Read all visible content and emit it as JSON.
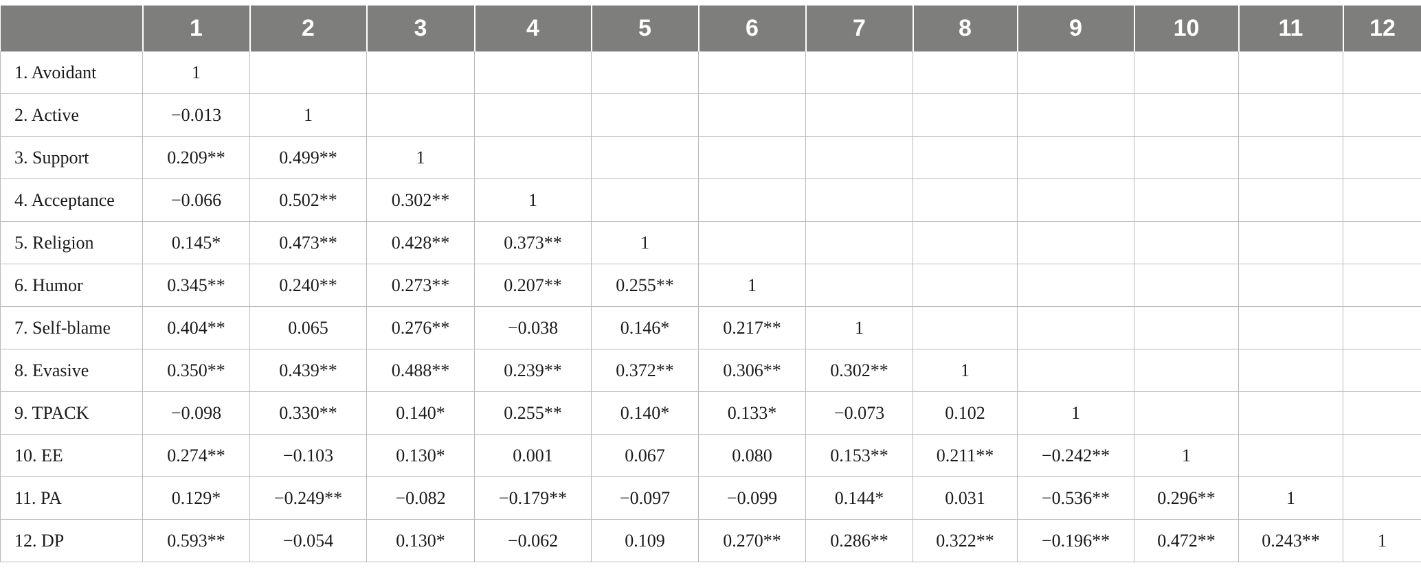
{
  "table": {
    "columns": [
      "",
      "1",
      "2",
      "3",
      "4",
      "5",
      "6",
      "7",
      "8",
      "9",
      "10",
      "11",
      "12"
    ],
    "rows": [
      [
        "1. Avoidant",
        "1",
        "",
        "",
        "",
        "",
        "",
        "",
        "",
        "",
        "",
        "",
        ""
      ],
      [
        "2. Active",
        "−0.013",
        "1",
        "",
        "",
        "",
        "",
        "",
        "",
        "",
        "",
        "",
        ""
      ],
      [
        "3. Support",
        "0.209**",
        "0.499**",
        "1",
        "",
        "",
        "",
        "",
        "",
        "",
        "",
        "",
        ""
      ],
      [
        "4. Acceptance",
        "−0.066",
        "0.502**",
        "0.302**",
        "1",
        "",
        "",
        "",
        "",
        "",
        "",
        "",
        ""
      ],
      [
        "5. Religion",
        "0.145*",
        "0.473**",
        "0.428**",
        "0.373**",
        "1",
        "",
        "",
        "",
        "",
        "",
        "",
        ""
      ],
      [
        "6. Humor",
        "0.345**",
        "0.240**",
        "0.273**",
        "0.207**",
        "0.255**",
        "1",
        "",
        "",
        "",
        "",
        "",
        ""
      ],
      [
        "7. Self-blame",
        "0.404**",
        "0.065",
        "0.276**",
        "−0.038",
        "0.146*",
        "0.217**",
        "1",
        "",
        "",
        "",
        "",
        ""
      ],
      [
        "8. Evasive",
        "0.350**",
        "0.439**",
        "0.488**",
        "0.239**",
        "0.372**",
        "0.306**",
        "0.302**",
        "1",
        "",
        "",
        "",
        ""
      ],
      [
        "9. TPACK",
        "−0.098",
        "0.330**",
        "0.140*",
        "0.255**",
        "0.140*",
        "0.133*",
        "−0.073",
        "0.102",
        "1",
        "",
        "",
        ""
      ],
      [
        "10. EE",
        "0.274**",
        "−0.103",
        "0.130*",
        "0.001",
        "0.067",
        "0.080",
        "0.153**",
        "0.211**",
        "−0.242**",
        "1",
        "",
        ""
      ],
      [
        "11. PA",
        "0.129*",
        "−0.249**",
        "−0.082",
        "−0.179**",
        "−0.097",
        "−0.099",
        "0.144*",
        "0.031",
        "−0.536**",
        "0.296**",
        "1",
        ""
      ],
      [
        "12. DP",
        "0.593**",
        "−0.054",
        "0.130*",
        "−0.062",
        "0.109",
        "0.270**",
        "0.286**",
        "0.322**",
        "−0.196**",
        "0.472**",
        "0.243**",
        "1"
      ]
    ]
  }
}
